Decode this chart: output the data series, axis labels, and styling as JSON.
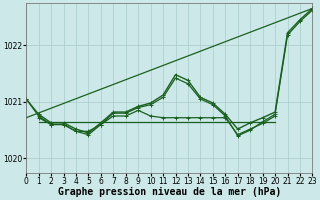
{
  "xlabel": "Graphe pression niveau de la mer (hPa)",
  "background_color": "#cce8e8",
  "plot_bg_color": "#cce8e8",
  "grid_color": "#aacccc",
  "ylim": [
    1019.75,
    1022.75
  ],
  "xlim": [
    0,
    23
  ],
  "yticks": [
    1020,
    1021,
    1022
  ],
  "xticks": [
    0,
    1,
    2,
    3,
    4,
    5,
    6,
    7,
    8,
    9,
    10,
    11,
    12,
    13,
    14,
    15,
    16,
    17,
    18,
    19,
    20,
    21,
    22,
    23
  ],
  "series": [
    {
      "x": [
        0,
        23
      ],
      "y": [
        1020.72,
        1022.65
      ],
      "color": "#1a6020",
      "linewidth": 0.9,
      "marker": null,
      "linestyle": "-"
    },
    {
      "x": [
        1,
        20
      ],
      "y": [
        1020.65,
        1020.65
      ],
      "color": "#1a6020",
      "linewidth": 0.9,
      "marker": null,
      "linestyle": "-"
    },
    {
      "x": [
        0,
        1,
        2,
        3,
        4,
        5,
        6,
        7,
        8,
        9,
        10,
        11,
        12,
        13,
        14,
        15,
        16,
        17,
        18,
        19,
        20,
        21,
        22,
        23
      ],
      "y": [
        1021.05,
        1020.78,
        1020.63,
        1020.63,
        1020.52,
        1020.45,
        1020.63,
        1020.82,
        1020.82,
        1020.92,
        1020.98,
        1021.12,
        1021.48,
        1021.38,
        1021.08,
        1020.98,
        1020.78,
        1020.52,
        1020.63,
        1020.72,
        1020.82,
        1022.22,
        1022.45,
        1022.65
      ],
      "color": "#1a6020",
      "linewidth": 1.0,
      "marker": "+",
      "markersize": 3.5,
      "linestyle": "-"
    },
    {
      "x": [
        0,
        1,
        2,
        3,
        4,
        5,
        6,
        7,
        8,
        9,
        10,
        11,
        12,
        13,
        14,
        15,
        16,
        17,
        18,
        19,
        20,
        21,
        22,
        23
      ],
      "y": [
        1021.05,
        1020.75,
        1020.6,
        1020.6,
        1020.48,
        1020.42,
        1020.6,
        1020.8,
        1020.8,
        1020.9,
        1020.95,
        1021.08,
        1021.42,
        1021.32,
        1021.05,
        1020.95,
        1020.75,
        1020.4,
        1020.5,
        1020.65,
        1020.78,
        1022.18,
        1022.42,
        1022.62
      ],
      "color": "#1a6020",
      "linewidth": 0.9,
      "marker": "+",
      "markersize": 3.0,
      "linestyle": "-"
    },
    {
      "x": [
        1,
        2,
        3,
        4,
        5,
        6,
        7,
        8,
        9,
        10,
        11,
        12,
        13,
        14,
        15,
        16,
        17,
        18,
        19,
        20
      ],
      "y": [
        1020.72,
        1020.6,
        1020.6,
        1020.48,
        1020.48,
        1020.6,
        1020.75,
        1020.75,
        1020.85,
        1020.75,
        1020.72,
        1020.72,
        1020.72,
        1020.72,
        1020.72,
        1020.72,
        1020.42,
        1020.52,
        1020.62,
        1020.75
      ],
      "color": "#1a6020",
      "linewidth": 0.9,
      "marker": "+",
      "markersize": 3.0,
      "linestyle": "-"
    }
  ],
  "label_fontsize": 7,
  "tick_fontsize": 5.5
}
